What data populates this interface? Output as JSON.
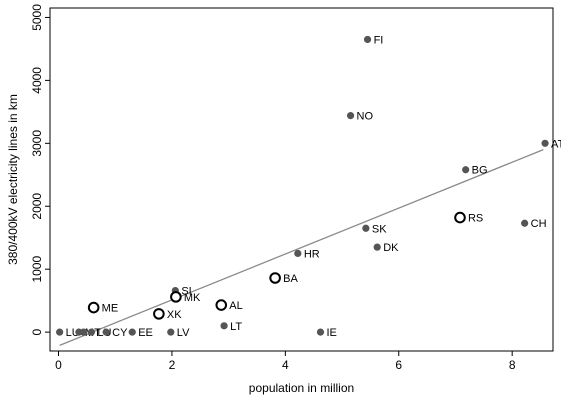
{
  "chart_data": {
    "type": "scatter",
    "xlabel": "population in million",
    "ylabel": "380/400kV electricity lines in km",
    "xlim": [
      -0.15,
      8.72
    ],
    "ylim": [
      -300,
      5150
    ],
    "xticks": [
      0,
      2,
      4,
      6,
      8
    ],
    "yticks": [
      0,
      1000,
      2000,
      3000,
      4000,
      5000
    ],
    "grid": false,
    "legend": "none",
    "colors": {
      "filled_point": "#555555",
      "hollow_point_stroke": "#000000",
      "fit_line": "#8a8a8a"
    },
    "fit_line": {
      "x": [
        0.02,
        8.55
      ],
      "y": [
        -210,
        2900
      ]
    },
    "points": [
      {
        "label": "FI",
        "x": 5.45,
        "y": 4650,
        "style": "filled"
      },
      {
        "label": "NO",
        "x": 5.15,
        "y": 3440,
        "style": "filled"
      },
      {
        "label": "AT",
        "x": 8.58,
        "y": 3000,
        "style": "filled"
      },
      {
        "label": "BG",
        "x": 7.18,
        "y": 2580,
        "style": "filled"
      },
      {
        "label": "RS",
        "x": 7.08,
        "y": 1820,
        "style": "hollow"
      },
      {
        "label": "CH",
        "x": 8.22,
        "y": 1730,
        "style": "filled"
      },
      {
        "label": "SK",
        "x": 5.42,
        "y": 1650,
        "style": "filled"
      },
      {
        "label": "DK",
        "x": 5.62,
        "y": 1350,
        "style": "filled"
      },
      {
        "label": "HR",
        "x": 4.22,
        "y": 1250,
        "style": "filled"
      },
      {
        "label": "BA",
        "x": 3.82,
        "y": 860,
        "style": "hollow"
      },
      {
        "label": "SI",
        "x": 2.06,
        "y": 660,
        "style": "filled"
      },
      {
        "label": "MK",
        "x": 2.07,
        "y": 560,
        "style": "hollow"
      },
      {
        "label": "AL",
        "x": 2.87,
        "y": 430,
        "style": "hollow"
      },
      {
        "label": "ME",
        "x": 0.62,
        "y": 390,
        "style": "hollow"
      },
      {
        "label": "XK",
        "x": 1.77,
        "y": 290,
        "style": "hollow"
      },
      {
        "label": "LT",
        "x": 2.92,
        "y": 100,
        "style": "filled"
      },
      {
        "label": "IE",
        "x": 4.62,
        "y": 0,
        "style": "filled"
      },
      {
        "label": "LU",
        "x": 0.02,
        "y": 0,
        "style": "filled"
      },
      {
        "label": "MT",
        "x": 0.36,
        "y": 0,
        "style": "filled"
      },
      {
        "label": "",
        "x": 0.44,
        "y": 0,
        "style": "filled"
      },
      {
        "label": "LU",
        "x": 0.58,
        "y": 0,
        "style": "filled"
      },
      {
        "label": "CY",
        "x": 0.84,
        "y": 0,
        "style": "filled"
      },
      {
        "label": "EE",
        "x": 1.3,
        "y": 0,
        "style": "filled"
      },
      {
        "label": "LV",
        "x": 1.98,
        "y": 0,
        "style": "filled"
      }
    ]
  }
}
